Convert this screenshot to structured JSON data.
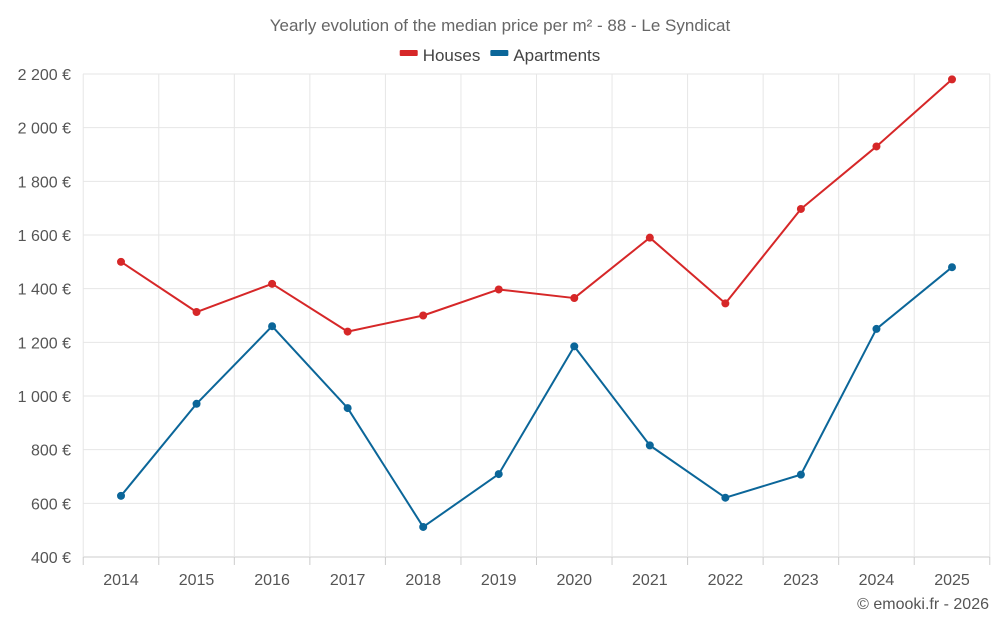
{
  "chart_data": {
    "type": "line",
    "title": "Yearly evolution of the median price per m² - 88 - Le Syndicat",
    "categories": [
      "2014",
      "2015",
      "2016",
      "2017",
      "2018",
      "2019",
      "2020",
      "2021",
      "2022",
      "2023",
      "2024",
      "2025"
    ],
    "series": [
      {
        "name": "Houses",
        "color": "#d62728",
        "values": [
          1500,
          1313,
          1418,
          1240,
          1300,
          1397,
          1365,
          1590,
          1345,
          1697,
          1930,
          2180
        ]
      },
      {
        "name": "Apartments",
        "color": "#0b6699",
        "values": [
          628,
          971,
          1260,
          955,
          512,
          709,
          1185,
          816,
          621,
          707,
          1250,
          1480
        ]
      }
    ],
    "ylim": [
      400,
      2200
    ],
    "yticks": [
      400,
      600,
      800,
      1000,
      1200,
      1400,
      1600,
      1800,
      2000,
      2200
    ],
    "ytick_labels": [
      "400 €",
      "600 €",
      "800 €",
      "1 000 €",
      "1 200 €",
      "1 400 €",
      "1 600 €",
      "1 800 €",
      "2 000 €",
      "2 200 €"
    ],
    "xlabel": "",
    "ylabel": "",
    "grid": true,
    "legend_position": "top-center"
  },
  "credit": "© emooki.fr - 2026"
}
